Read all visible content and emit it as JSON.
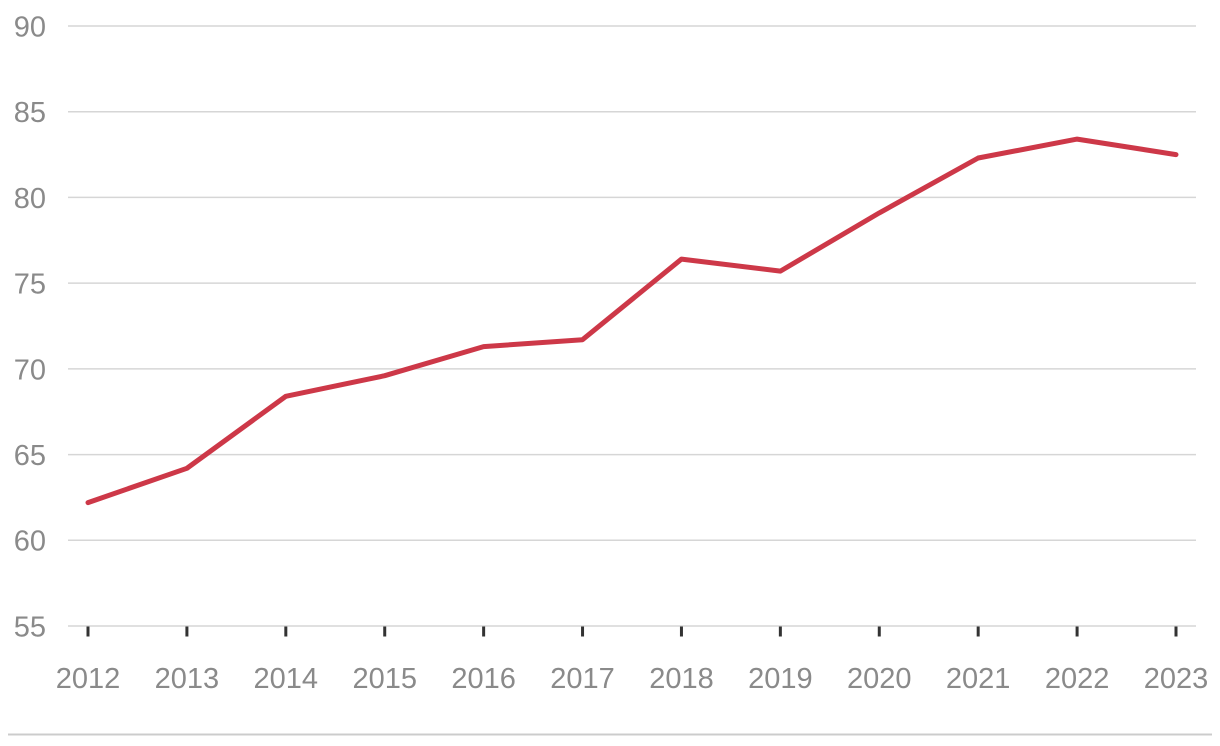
{
  "chart_data": {
    "type": "line",
    "title": "",
    "xlabel": "",
    "ylabel": "",
    "categories": [
      "2012",
      "2013",
      "2014",
      "2015",
      "2016",
      "2017",
      "2018",
      "2019",
      "2020",
      "2021",
      "2022",
      "2023"
    ],
    "series": [
      {
        "name": "value",
        "values": [
          62.2,
          64.2,
          68.4,
          69.6,
          71.3,
          71.7,
          76.4,
          75.7,
          79.1,
          82.3,
          83.4,
          82.5
        ]
      }
    ],
    "ylim": [
      55,
      90
    ],
    "y_ticks": [
      90,
      85,
      80,
      75,
      70,
      65,
      60,
      55
    ],
    "grid": "horizontal",
    "legend": "none",
    "colors": {
      "line": "#cd3848",
      "gridline": "#d6d6d6",
      "axis_label": "#8a8a8a",
      "tick_mark": "#333333",
      "divider": "#cccccc",
      "background": "#ffffff"
    }
  }
}
